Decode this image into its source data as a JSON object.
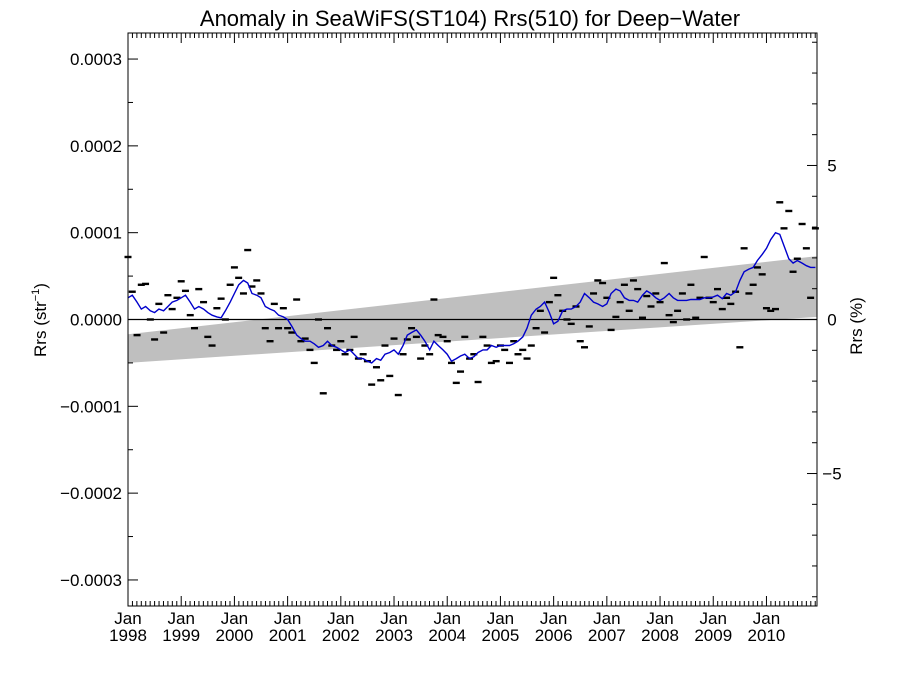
{
  "chart_data": {
    "type": "scatter",
    "title": "Anomaly in SeaWiFS(ST104) Rrs(510) for Deep−Water",
    "ylabel_left_prefix": "Rrs (str",
    "ylabel_left_exp": "−1",
    "ylabel_left_suffix": ")",
    "ylabel_right": "Rrs (%)",
    "xlim": [
      1998.0,
      2010.95
    ],
    "ylim": [
      -0.00033,
      0.00033
    ],
    "ylim_right": [
      -9.3,
      9.3
    ],
    "grid": false,
    "legend": "none",
    "x_ticks": [
      {
        "value": 1998,
        "line1": "Jan",
        "line2": "1998"
      },
      {
        "value": 1999,
        "line1": "Jan",
        "line2": "1999"
      },
      {
        "value": 2000,
        "line1": "Jan",
        "line2": "2000"
      },
      {
        "value": 2001,
        "line1": "Jan",
        "line2": "2001"
      },
      {
        "value": 2002,
        "line1": "Jan",
        "line2": "2002"
      },
      {
        "value": 2003,
        "line1": "Jan",
        "line2": "2003"
      },
      {
        "value": 2004,
        "line1": "Jan",
        "line2": "2004"
      },
      {
        "value": 2005,
        "line1": "Jan",
        "line2": "2005"
      },
      {
        "value": 2006,
        "line1": "Jan",
        "line2": "2006"
      },
      {
        "value": 2007,
        "line1": "Jan",
        "line2": "2007"
      },
      {
        "value": 2008,
        "line1": "Jan",
        "line2": "2008"
      },
      {
        "value": 2009,
        "line1": "Jan",
        "line2": "2009"
      },
      {
        "value": 2010,
        "line1": "Jan",
        "line2": "2010"
      }
    ],
    "y_ticks_left": [
      {
        "value": 0.0003,
        "label": "0.0003"
      },
      {
        "value": 0.0002,
        "label": "0.0002"
      },
      {
        "value": 0.0001,
        "label": "0.0001"
      },
      {
        "value": 0.0,
        "label": "0.0000"
      },
      {
        "value": -0.0001,
        "label": "−0.0001"
      },
      {
        "value": -0.0002,
        "label": "−0.0002"
      },
      {
        "value": -0.0003,
        "label": "−0.0003"
      }
    ],
    "y_ticks_right": [
      {
        "value": 5,
        "label": "5"
      },
      {
        "value": 0,
        "label": "0"
      },
      {
        "value": -5,
        "label": "−5"
      }
    ],
    "colors": {
      "points": "#000000",
      "smooth_line": "#0000cc",
      "band": "#bfbfbf",
      "zero_line": "#000000"
    },
    "trend_band": {
      "x": [
        1998.0,
        2010.95
      ],
      "upper": [
        -1.7e-05,
        7.3e-05
      ],
      "lower": [
        -5e-05,
        3e-06
      ]
    },
    "monthly_points": {
      "x": [
        1998.0,
        1998.08,
        1998.17,
        1998.25,
        1998.33,
        1998.42,
        1998.5,
        1998.58,
        1998.67,
        1998.75,
        1998.83,
        1998.92,
        1999.0,
        1999.08,
        1999.17,
        1999.25,
        1999.33,
        1999.42,
        1999.5,
        1999.58,
        1999.67,
        1999.75,
        1999.83,
        1999.92,
        2000.0,
        2000.08,
        2000.17,
        2000.25,
        2000.33,
        2000.42,
        2000.5,
        2000.58,
        2000.67,
        2000.75,
        2000.83,
        2000.92,
        2001.0,
        2001.08,
        2001.17,
        2001.25,
        2001.33,
        2001.42,
        2001.5,
        2001.58,
        2001.67,
        2001.75,
        2001.83,
        2001.92,
        2002.0,
        2002.08,
        2002.17,
        2002.25,
        2002.33,
        2002.42,
        2002.5,
        2002.58,
        2002.67,
        2002.75,
        2002.83,
        2002.92,
        2003.0,
        2003.08,
        2003.17,
        2003.25,
        2003.33,
        2003.42,
        2003.5,
        2003.58,
        2003.67,
        2003.75,
        2003.83,
        2003.92,
        2004.0,
        2004.08,
        2004.17,
        2004.25,
        2004.33,
        2004.42,
        2004.5,
        2004.58,
        2004.67,
        2004.75,
        2004.83,
        2004.92,
        2005.0,
        2005.08,
        2005.17,
        2005.25,
        2005.33,
        2005.42,
        2005.5,
        2005.58,
        2005.67,
        2005.75,
        2005.83,
        2005.92,
        2006.0,
        2006.08,
        2006.17,
        2006.25,
        2006.33,
        2006.42,
        2006.5,
        2006.58,
        2006.67,
        2006.75,
        2006.83,
        2006.92,
        2007.0,
        2007.08,
        2007.17,
        2007.25,
        2007.33,
        2007.42,
        2007.5,
        2007.58,
        2007.67,
        2007.75,
        2007.83,
        2007.92,
        2008.0,
        2008.08,
        2008.17,
        2008.25,
        2008.33,
        2008.42,
        2008.5,
        2008.58,
        2008.67,
        2008.75,
        2008.83,
        2008.92,
        2009.0,
        2009.08,
        2009.17,
        2009.25,
        2009.33,
        2009.42,
        2009.5,
        2009.58,
        2009.67,
        2009.75,
        2009.83,
        2009.92,
        2010.0,
        2010.08,
        2010.17,
        2010.25,
        2010.33,
        2010.42,
        2010.5,
        2010.58,
        2010.67,
        2010.75,
        2010.83,
        2010.92
      ],
      "y": [
        7.2e-05,
        3.2e-05,
        -1.8e-05,
        4e-05,
        4.1e-05,
        0.0,
        -2.3e-05,
        1.8e-05,
        -1.5e-05,
        2.8e-05,
        1.2e-05,
        2.5e-05,
        4.4e-05,
        3.3e-05,
        5e-06,
        -1e-05,
        3.5e-05,
        2e-05,
        -2e-05,
        -3e-05,
        1.3e-05,
        2.4e-05,
        0.0,
        4e-05,
        6e-05,
        4.8e-05,
        3e-05,
        8e-05,
        3.8e-05,
        4.5e-05,
        3e-05,
        -1e-05,
        -2.5e-05,
        1.8e-05,
        -1e-05,
        1.3e-05,
        -1e-05,
        -1.5e-05,
        2.3e-05,
        -2.5e-05,
        -2.2e-05,
        -3.5e-05,
        -5e-05,
        0.0,
        -8.5e-05,
        -1e-05,
        -3e-05,
        -3.5e-05,
        -2.5e-05,
        -4e-05,
        -3.5e-05,
        -2e-05,
        -4.5e-05,
        -4e-05,
        -4.8e-05,
        -7.5e-05,
        -5.5e-05,
        -7e-05,
        -3e-05,
        -6.5e-05,
        -2.2e-05,
        -8.7e-05,
        -4e-05,
        -2.3e-05,
        -1e-05,
        -2e-05,
        -4.5e-05,
        -3e-05,
        -4e-05,
        2.3e-05,
        -1.8e-05,
        -2e-05,
        -2.5e-05,
        -5e-05,
        -7.3e-05,
        -6e-05,
        -2e-05,
        -4.5e-05,
        -4e-05,
        -7.2e-05,
        -2e-05,
        -3e-05,
        -5e-05,
        -4.8e-05,
        -3e-05,
        -3.5e-05,
        -5e-05,
        -2.5e-05,
        -4e-05,
        -3.5e-05,
        -4.5e-05,
        -3e-05,
        -1e-05,
        1e-05,
        -1.5e-05,
        2e-05,
        4.8e-05,
        2.8e-05,
        1e-05,
        0.0,
        -5e-06,
        1.5e-05,
        -2.5e-05,
        -3.2e-05,
        -8e-06,
        3e-05,
        4.5e-05,
        4.2e-05,
        2.5e-05,
        -1.2e-05,
        3e-06,
        2e-05,
        4e-05,
        1e-05,
        4.5e-05,
        3.5e-05,
        2e-06,
        2.7e-05,
        1.5e-05,
        3e-05,
        2e-05,
        6.5e-05,
        5e-06,
        -3e-06,
        1e-05,
        3e-05,
        0.0,
        4e-05,
        2e-06,
        2.5e-05,
        7.2e-05,
        2.5e-05,
        2e-05,
        3.5e-05,
        1.2e-05,
        2.5e-05,
        1.8e-05,
        3.2e-05,
        -3.2e-05,
        8.2e-05,
        3e-05,
        4e-05,
        6e-05,
        5.2e-05,
        1.3e-05,
        1e-05,
        1.2e-05,
        0.000135,
        0.000105,
        0.000125,
        5.5e-05,
        7e-05,
        0.00011,
        8.2e-05,
        2.5e-05,
        0.000105
      ]
    },
    "smoothed_series": {
      "x": [
        1998.0,
        1998.08,
        1998.17,
        1998.25,
        1998.33,
        1998.42,
        1998.5,
        1998.58,
        1998.67,
        1998.75,
        1998.83,
        1998.92,
        1999.0,
        1999.08,
        1999.17,
        1999.25,
        1999.33,
        1999.42,
        1999.5,
        1999.58,
        1999.67,
        1999.75,
        1999.83,
        1999.92,
        2000.0,
        2000.08,
        2000.17,
        2000.25,
        2000.33,
        2000.42,
        2000.5,
        2000.58,
        2000.67,
        2000.75,
        2000.83,
        2000.92,
        2001.0,
        2001.08,
        2001.17,
        2001.25,
        2001.33,
        2001.42,
        2001.5,
        2001.58,
        2001.67,
        2001.75,
        2001.83,
        2001.92,
        2002.0,
        2002.08,
        2002.17,
        2002.25,
        2002.33,
        2002.42,
        2002.5,
        2002.58,
        2002.67,
        2002.75,
        2002.83,
        2002.92,
        2003.0,
        2003.08,
        2003.17,
        2003.25,
        2003.33,
        2003.42,
        2003.5,
        2003.58,
        2003.67,
        2003.75,
        2003.83,
        2003.92,
        2004.0,
        2004.08,
        2004.17,
        2004.25,
        2004.33,
        2004.42,
        2004.5,
        2004.58,
        2004.67,
        2004.75,
        2004.83,
        2004.92,
        2005.0,
        2005.08,
        2005.17,
        2005.25,
        2005.33,
        2005.42,
        2005.5,
        2005.58,
        2005.67,
        2005.75,
        2005.83,
        2005.92,
        2006.0,
        2006.08,
        2006.17,
        2006.25,
        2006.33,
        2006.42,
        2006.5,
        2006.58,
        2006.67,
        2006.75,
        2006.83,
        2006.92,
        2007.0,
        2007.08,
        2007.17,
        2007.25,
        2007.33,
        2007.42,
        2007.5,
        2007.58,
        2007.67,
        2007.75,
        2007.83,
        2007.92,
        2008.0,
        2008.08,
        2008.17,
        2008.25,
        2008.33,
        2008.42,
        2008.5,
        2008.58,
        2008.67,
        2008.75,
        2008.83,
        2008.92,
        2009.0,
        2009.08,
        2009.17,
        2009.25,
        2009.33,
        2009.42,
        2009.5,
        2009.58,
        2009.67,
        2009.75,
        2009.83,
        2009.92,
        2010.0,
        2010.08,
        2010.17,
        2010.25,
        2010.33,
        2010.42,
        2010.5,
        2010.58,
        2010.67,
        2010.75,
        2010.83,
        2010.92
      ],
      "y": [
        2.5e-05,
        2.8e-05,
        2e-05,
        1.2e-05,
        1.5e-05,
        1e-05,
        8e-06,
        1.2e-05,
        1e-05,
        1.5e-05,
        2e-05,
        2.2e-05,
        2.5e-05,
        2.8e-05,
        2e-05,
        1.2e-05,
        1.5e-05,
        1.2e-05,
        8e-06,
        5e-06,
        3e-06,
        2e-06,
        1e-05,
        2e-05,
        3e-05,
        4e-05,
        4.5e-05,
        4.2e-05,
        3e-05,
        2.8e-05,
        2.5e-05,
        1.5e-05,
        1.2e-05,
        1e-05,
        5e-06,
        3e-06,
        0.0,
        -8e-06,
        -1.8e-05,
        -2.2e-05,
        -2.5e-05,
        -2.5e-05,
        -2.8e-05,
        -3.2e-05,
        -3e-05,
        -2.5e-05,
        -3e-05,
        -3.2e-05,
        -3.5e-05,
        -3.8e-05,
        -3.5e-05,
        -4e-05,
        -4.5e-05,
        -4.5e-05,
        -4.8e-05,
        -5e-05,
        -4.5e-05,
        -4.7e-05,
        -4e-05,
        -3.8e-05,
        -3.5e-05,
        -4e-05,
        -3e-05,
        -1.8e-05,
        -1.5e-05,
        -1.2e-05,
        -1.8e-05,
        -2.5e-05,
        -3.5e-05,
        -2.5e-05,
        -3e-05,
        -3.5e-05,
        -4e-05,
        -4.8e-05,
        -4.5e-05,
        -4.2e-05,
        -4e-05,
        -4.5e-05,
        -4.3e-05,
        -3.8e-05,
        -3.5e-05,
        -3.5e-05,
        -3e-05,
        -3.2e-05,
        -3e-05,
        -3e-05,
        -3e-05,
        -2.8e-05,
        -2.5e-05,
        -2e-05,
        -1e-05,
        5e-06,
        1.2e-05,
        1.5e-05,
        2e-05,
        8e-06,
        -5e-06,
        -2e-06,
        1e-05,
        1.2e-05,
        1.2e-05,
        1.5e-05,
        2e-05,
        3e-05,
        2.5e-05,
        2e-05,
        1.8e-05,
        1.5e-05,
        1.8e-05,
        3e-05,
        3.5e-05,
        3.3e-05,
        2.5e-05,
        2.2e-05,
        2.2e-05,
        2e-05,
        2.8e-05,
        3.3e-05,
        3e-05,
        2.5e-05,
        2.2e-05,
        2.5e-05,
        3e-05,
        2.5e-05,
        2.2e-05,
        2.2e-05,
        2.2e-05,
        2.3e-05,
        2.3e-05,
        2.3e-05,
        2.5e-05,
        2.5e-05,
        2.6e-05,
        2.8e-05,
        2.4e-05,
        3e-05,
        2.8e-05,
        3.2e-05,
        4.5e-05,
        5.5e-05,
        5.8e-05,
        6e-05,
        6.8e-05,
        7.5e-05,
        8.2e-05,
        9.2e-05,
        0.0001,
        9.8e-05,
        8.5e-05,
        7e-05,
        6.5e-05,
        6.8e-05,
        6.5e-05,
        6.2e-05,
        6e-05,
        6e-05
      ]
    }
  }
}
